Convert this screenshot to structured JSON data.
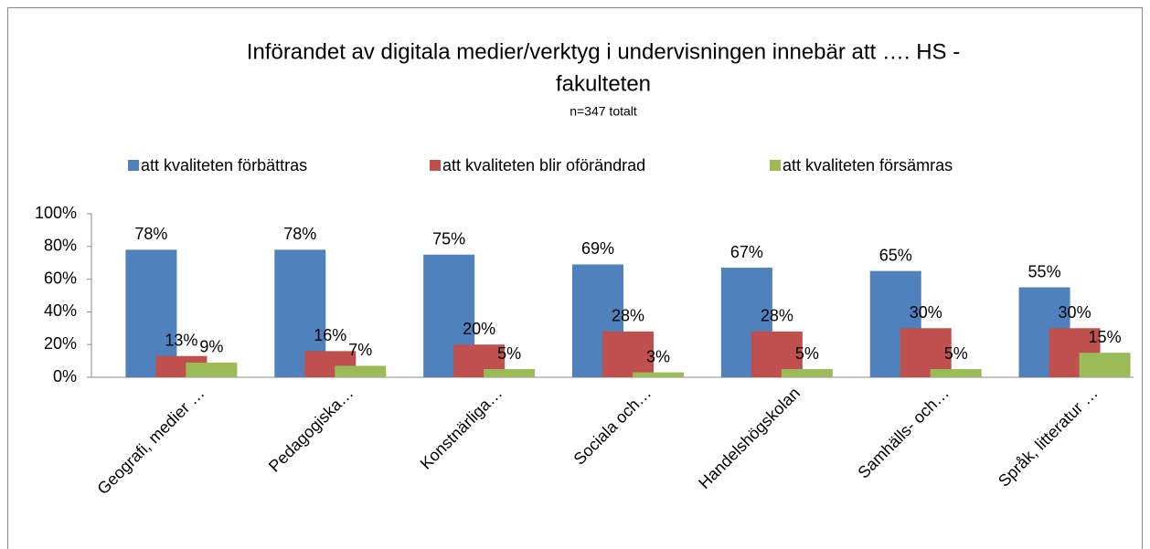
{
  "chart_data": {
    "type": "bar",
    "title": [
      "Införandet av digitala medier/verktyg i undervisningen innebär att ….  HS -",
      "fakulteten"
    ],
    "subtitle": "n=347 totalt",
    "categories": [
      "Geografi, medier …",
      "Pedagogiska…",
      "Konstnärliga…",
      "Sociala och…",
      "Handelshögskolan",
      "Samhälls- och…",
      "Språk, litteratur …"
    ],
    "series": [
      {
        "name": "att kvaliteten förbättras",
        "color": "#4f81bd",
        "values": [
          78,
          78,
          75,
          69,
          67,
          65,
          55
        ],
        "value_labels": [
          "78%",
          "78%",
          "75%",
          "69%",
          "67%",
          "65%",
          "55%"
        ]
      },
      {
        "name": "att kvaliteten blir oförändrad",
        "color": "#c0504d",
        "values": [
          13,
          16,
          20,
          28,
          28,
          30,
          30
        ],
        "value_labels": [
          "13%",
          "16%",
          "20%",
          "28%",
          "28%",
          "30%",
          "30%"
        ]
      },
      {
        "name": "att kvaliteten försämras",
        "color": "#9bbb59",
        "values": [
          9,
          7,
          5,
          3,
          5,
          5,
          15
        ],
        "value_labels": [
          "9%",
          "7%",
          "5%",
          "3%",
          "5%",
          "5%",
          "15%"
        ]
      }
    ],
    "ylim": [
      0,
      100
    ],
    "yticks": [
      {
        "value": 0,
        "label": "0%"
      },
      {
        "value": 20,
        "label": "20%"
      },
      {
        "value": 40,
        "label": "40%"
      },
      {
        "value": 60,
        "label": "60%"
      },
      {
        "value": 80,
        "label": "80%"
      },
      {
        "value": 100,
        "label": "100%"
      }
    ],
    "legend": "top",
    "grid": false
  }
}
